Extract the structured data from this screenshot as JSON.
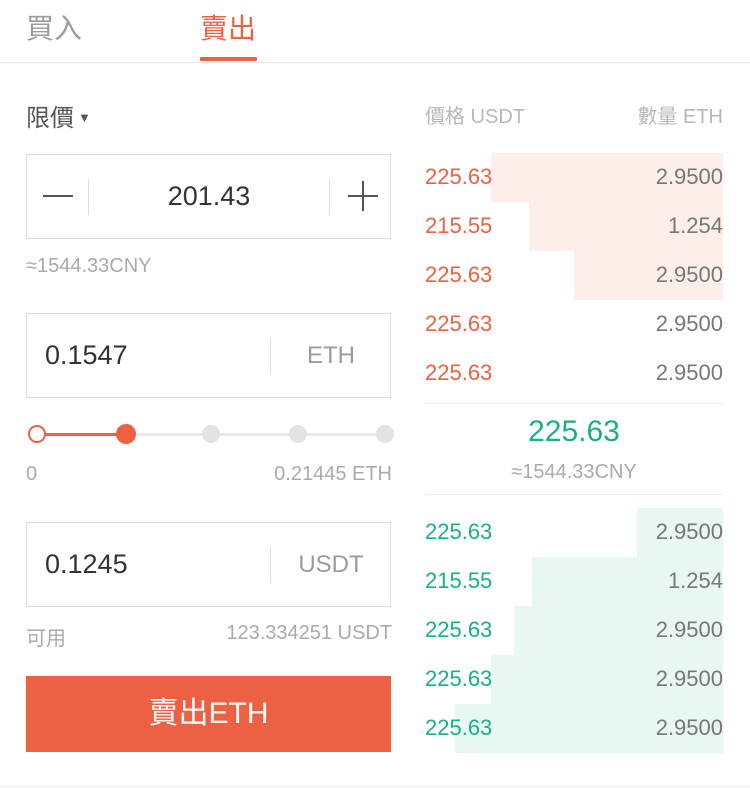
{
  "tabs": {
    "buy": "買入",
    "sell": "賣出",
    "active": "sell"
  },
  "form": {
    "order_type": "限價",
    "price": "201.43",
    "price_cny": "≈1544.33CNY",
    "amount": "0.1547",
    "amount_unit": "ETH",
    "slider": {
      "min_label": "0",
      "max_label": "0.21445 ETH",
      "percent": 25
    },
    "total": "0.1245",
    "total_unit": "USDT",
    "available_label": "可用",
    "available_value": "123.334251 USDT",
    "submit_label": "賣出ETH"
  },
  "order_book": {
    "price_header": "價格 USDT",
    "qty_header": "數量 ETH",
    "asks": [
      {
        "price": "225.63",
        "qty": "2.9500",
        "depth": 0.78
      },
      {
        "price": "215.55",
        "qty": "1.254",
        "depth": 0.65
      },
      {
        "price": "225.63",
        "qty": "2.9500",
        "depth": 0.5
      },
      {
        "price": "225.63",
        "qty": "2.9500",
        "depth": 0
      },
      {
        "price": "225.63",
        "qty": "2.9500",
        "depth": 0
      }
    ],
    "last_price": "225.63",
    "last_price_cny": "≈1544.33CNY",
    "bids": [
      {
        "price": "225.63",
        "qty": "2.9500",
        "depth": 0.29
      },
      {
        "price": "215.55",
        "qty": "1.254",
        "depth": 0.64
      },
      {
        "price": "225.63",
        "qty": "2.9500",
        "depth": 0.7
      },
      {
        "price": "225.63",
        "qty": "2.9500",
        "depth": 0.78
      },
      {
        "price": "225.63",
        "qty": "2.9500",
        "depth": 0.9
      }
    ]
  },
  "colors": {
    "accent": "#ec6141",
    "ask": "#ec6141",
    "bid": "#17b08c"
  }
}
